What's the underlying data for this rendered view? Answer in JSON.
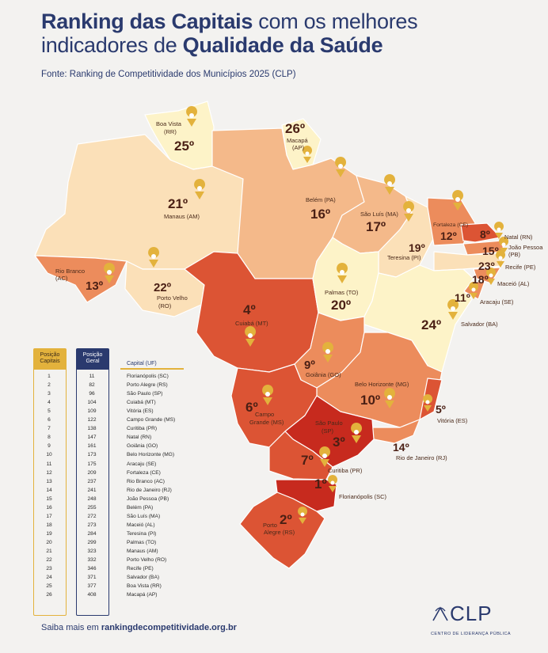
{
  "header": {
    "title_part1": "Ranking das Capitais",
    "title_part2": " com os melhores",
    "title_part3": "indicadores de ",
    "title_part4": "Qualidade da Saúde",
    "source": "Fonte: Ranking de Competitividade dos Municípios 2025 (CLP)"
  },
  "colors": {
    "background": "#f3f2f0",
    "title": "#2a3a6e",
    "pin": "#e3b23c",
    "tier_lightest": "#fdf3c8",
    "tier_light": "#fbe0b8",
    "tier_mid": "#f4b98a",
    "tier_orange": "#ec8c5c",
    "tier_deep": "#dc5434",
    "tier_red": "#c72a1e"
  },
  "map": {
    "capitals": [
      {
        "city": "Boa Vista",
        "uf": "(RR)",
        "rank": "25º"
      },
      {
        "city": "Macapá",
        "uf": "(AP)",
        "rank": "26º"
      },
      {
        "city": "Manaus (AM)",
        "uf": "",
        "rank": "21º"
      },
      {
        "city": "Belém (PA)",
        "uf": "",
        "rank": "16º"
      },
      {
        "city": "São Luís (MA)",
        "uf": "",
        "rank": "17º"
      },
      {
        "city": "Fortaleza (CE)",
        "uf": "",
        "rank": "12º"
      },
      {
        "city": "Teresina (PI)",
        "uf": "",
        "rank": "19º"
      },
      {
        "city": "Natal (RN)",
        "uf": "",
        "rank": "8º"
      },
      {
        "city": "João Pessoa",
        "uf": "(PB)",
        "rank": "15º"
      },
      {
        "city": "Recife (PE)",
        "uf": "",
        "rank": "23º"
      },
      {
        "city": "Maceió (AL)",
        "uf": "",
        "rank": "18º"
      },
      {
        "city": "Aracaju (SE)",
        "uf": "",
        "rank": "11º"
      },
      {
        "city": "Salvador (BA)",
        "uf": "",
        "rank": "24º"
      },
      {
        "city": "Rio Branco",
        "uf": "(AC)",
        "rank": "13º"
      },
      {
        "city": "Porto Velho",
        "uf": "(RO)",
        "rank": "22º"
      },
      {
        "city": "Cuiabá (MT)",
        "uf": "",
        "rank": "4º"
      },
      {
        "city": "Palmas (TO)",
        "uf": "",
        "rank": "20º"
      },
      {
        "city": "Goiânia (GO)",
        "uf": "",
        "rank": "9º"
      },
      {
        "city": "Belo Horizonte (MG)",
        "uf": "",
        "rank": "10º"
      },
      {
        "city": "Vitória (ES)",
        "uf": "",
        "rank": "5º"
      },
      {
        "city": "Campo",
        "uf": "Grande (MS)",
        "rank": "6º"
      },
      {
        "city": "São Paulo",
        "uf": "(SP)",
        "rank": "3º"
      },
      {
        "city": "Rio de Janeiro (RJ)",
        "uf": "",
        "rank": "14º"
      },
      {
        "city": "Curitiba (PR)",
        "uf": "",
        "rank": "7º"
      },
      {
        "city": "Florianópolis (SC)",
        "uf": "",
        "rank": "1º"
      },
      {
        "city": "Porto",
        "uf": "Alegre (RS)",
        "rank": "2º"
      }
    ]
  },
  "table": {
    "headers": {
      "posicao_capitais": "Posição Capitais",
      "posicao_geral": "Posição Geral",
      "capital": "Capital (UF)"
    },
    "rows": [
      {
        "pos": "1",
        "geral": "11",
        "capital": "Florianópolis (SC)"
      },
      {
        "pos": "2",
        "geral": "82",
        "capital": "Porto Alegre (RS)"
      },
      {
        "pos": "3",
        "geral": "96",
        "capital": "São Paulo (SP)"
      },
      {
        "pos": "4",
        "geral": "104",
        "capital": "Cuiabá (MT)"
      },
      {
        "pos": "5",
        "geral": "109",
        "capital": "Vitória (ES)"
      },
      {
        "pos": "6",
        "geral": "122",
        "capital": "Campo Grande (MS)"
      },
      {
        "pos": "7",
        "geral": "138",
        "capital": "Curitiba (PR)"
      },
      {
        "pos": "8",
        "geral": "147",
        "capital": "Natal (RN)"
      },
      {
        "pos": "9",
        "geral": "161",
        "capital": "Goiânia (GO)"
      },
      {
        "pos": "10",
        "geral": "173",
        "capital": "Belo Horizonte (MG)"
      },
      {
        "pos": "11",
        "geral": "175",
        "capital": "Aracaju (SE)"
      },
      {
        "pos": "12",
        "geral": "209",
        "capital": "Fortaleza (CE)"
      },
      {
        "pos": "13",
        "geral": "237",
        "capital": "Rio Branco (AC)"
      },
      {
        "pos": "14",
        "geral": "241",
        "capital": "Rio de Janeiro (RJ)"
      },
      {
        "pos": "15",
        "geral": "248",
        "capital": "João Pessoa (PB)"
      },
      {
        "pos": "16",
        "geral": "255",
        "capital": "Belém (PA)"
      },
      {
        "pos": "17",
        "geral": "272",
        "capital": "São Luís (MA)"
      },
      {
        "pos": "18",
        "geral": "273",
        "capital": "Maceió (AL)"
      },
      {
        "pos": "19",
        "geral": "284",
        "capital": "Teresina (PI)"
      },
      {
        "pos": "20",
        "geral": "299",
        "capital": "Palmas (TO)"
      },
      {
        "pos": "21",
        "geral": "323",
        "capital": "Manaus (AM)"
      },
      {
        "pos": "22",
        "geral": "332",
        "capital": "Porto Velho (RO)"
      },
      {
        "pos": "23",
        "geral": "346",
        "capital": "Recife (PE)"
      },
      {
        "pos": "24",
        "geral": "371",
        "capital": "Salvador (BA)"
      },
      {
        "pos": "25",
        "geral": "377",
        "capital": "Boa Vista (RR)"
      },
      {
        "pos": "26",
        "geral": "408",
        "capital": "Macapá (AP)"
      }
    ]
  },
  "footer": {
    "prefix": "Saiba mais em ",
    "link": "rankingdecompetitividade.org.br"
  },
  "logo": {
    "name": "CLP",
    "subtitle": "CENTRO DE LIDERANÇA PÚBLICA"
  }
}
